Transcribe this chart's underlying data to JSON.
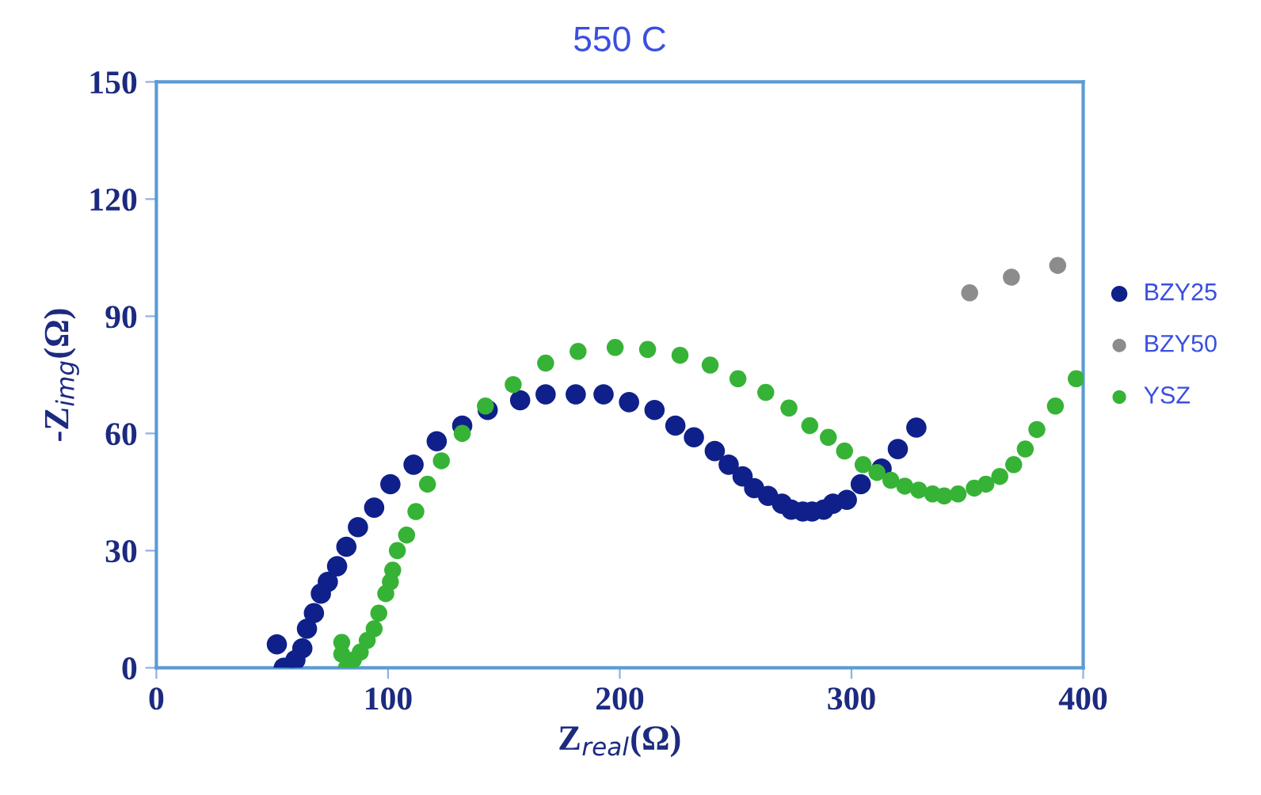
{
  "chart_data": {
    "type": "scatter",
    "title": "550 C",
    "xlabel": "Z$_{real}$(Ω)",
    "ylabel": "-Z$_{img}$(Ω)",
    "xlim": [
      0,
      400
    ],
    "ylim": [
      0,
      150
    ],
    "xticks": [
      0,
      100,
      200,
      300,
      400
    ],
    "yticks": [
      0,
      30,
      60,
      90,
      120,
      150
    ],
    "grid": false,
    "legend": "right",
    "marker": "circle",
    "series": [
      {
        "name": "BZY25",
        "color": "#0f208a",
        "x": [
          52,
          55,
          60,
          63,
          65,
          68,
          71,
          74,
          78,
          82,
          87,
          94,
          101,
          111,
          121,
          132,
          143,
          157,
          168,
          181,
          193,
          204,
          215,
          224,
          232,
          241,
          247,
          253,
          258,
          264,
          270,
          274,
          279,
          283,
          288,
          292,
          298,
          304,
          313,
          320,
          328
        ],
        "values": [
          6,
          0,
          2,
          5,
          10,
          14,
          19,
          22,
          26,
          31,
          36,
          41,
          47,
          52,
          58,
          62,
          66,
          68.5,
          70,
          70,
          70,
          68,
          66,
          62,
          59,
          55.5,
          52,
          49,
          46,
          44,
          42,
          40.5,
          40,
          40,
          40.5,
          42,
          43,
          47,
          51,
          56,
          61.5
        ]
      },
      {
        "name": "BZY50",
        "color": "#8c8c8c",
        "x": [
          351,
          369,
          389
        ],
        "values": [
          96,
          100,
          103
        ]
      },
      {
        "name": "YSZ",
        "color": "#36b336",
        "x": [
          80,
          80,
          82,
          85,
          88,
          91,
          94,
          96,
          99,
          101,
          102,
          104,
          108,
          112,
          117,
          123,
          132,
          142,
          154,
          168,
          182,
          198,
          212,
          226,
          239,
          251,
          263,
          273,
          282,
          290,
          297,
          305,
          311,
          317,
          323,
          329,
          335,
          340,
          346,
          353,
          358,
          364,
          370,
          375,
          380,
          388,
          397
        ],
        "values": [
          6.5,
          3.5,
          0,
          2,
          4,
          7,
          10,
          14,
          19,
          22,
          25,
          30,
          34,
          40,
          47,
          53,
          60,
          67,
          72.5,
          78,
          81,
          82,
          81.5,
          80,
          77.5,
          74,
          70.5,
          66.5,
          62,
          59,
          55.5,
          52,
          50,
          48,
          46.5,
          45.5,
          44.5,
          44,
          44.5,
          46,
          47,
          49,
          52,
          56,
          61,
          67,
          74
        ]
      }
    ]
  }
}
